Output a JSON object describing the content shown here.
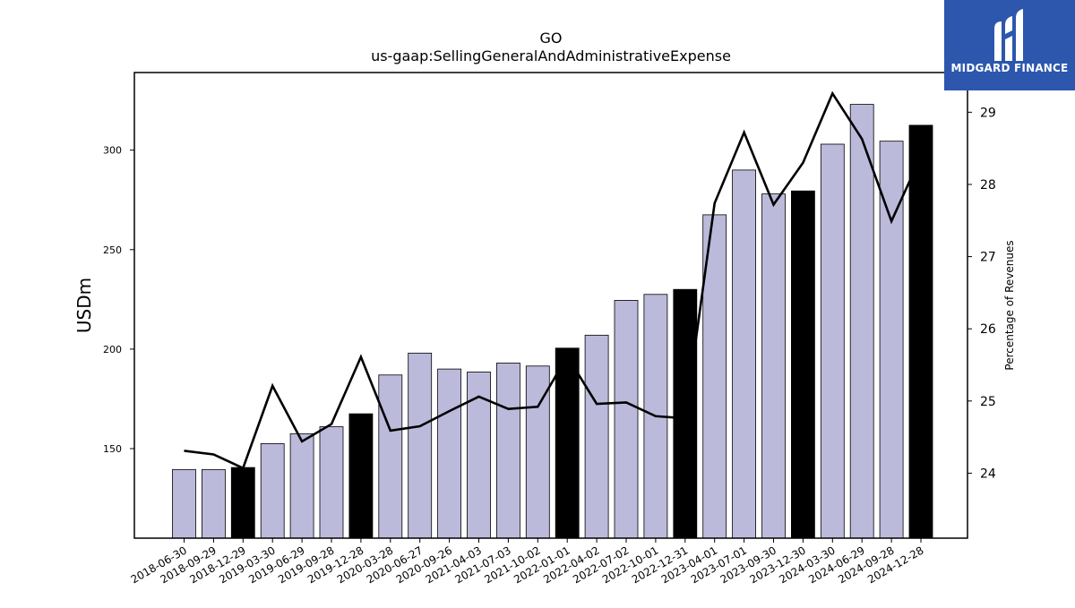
{
  "chart_data": {
    "type": "bar",
    "title": "GO",
    "subtitle": "us-gaap:SellingGeneralAndAdministrativeExpense",
    "ylabel": "USDm",
    "y2label": "Percentage of Revenues",
    "ylim": [
      105,
      339
    ],
    "y2lim": [
      23.1,
      29.55
    ],
    "yticks": [
      150,
      200,
      250,
      300
    ],
    "y2ticks": [
      24,
      25,
      26,
      27,
      28,
      29
    ],
    "categories": [
      "2018-06-30",
      "2018-09-29",
      "2018-12-29",
      "2019-03-30",
      "2019-06-29",
      "2019-09-28",
      "2019-12-28",
      "2020-03-28",
      "2020-06-27",
      "2020-09-26",
      "2021-04-03",
      "2021-07-03",
      "2021-10-02",
      "2022-01-01",
      "2022-04-02",
      "2022-07-02",
      "2022-10-01",
      "2022-12-31",
      "2023-04-01",
      "2023-07-01",
      "2023-09-30",
      "2023-12-30",
      "2024-03-30",
      "2024-06-29",
      "2024-09-28",
      "2024-12-28"
    ],
    "series": [
      {
        "type": "bar",
        "axis": "left",
        "values": [
          139.5,
          139.5,
          140.5,
          152.5,
          157.5,
          161,
          167.5,
          187,
          198,
          190,
          188.5,
          193,
          191.5,
          200.5,
          207,
          224.5,
          227.5,
          230,
          267.5,
          290,
          278,
          279.5,
          303,
          323,
          304.5,
          312.5
        ],
        "highlight": [
          false,
          false,
          true,
          false,
          false,
          false,
          true,
          false,
          false,
          false,
          false,
          false,
          false,
          true,
          false,
          false,
          false,
          true,
          false,
          false,
          false,
          true,
          false,
          false,
          false,
          true
        ]
      },
      {
        "type": "line",
        "axis": "right",
        "values": [
          24.31,
          24.26,
          24.07,
          25.21,
          24.44,
          24.68,
          25.61,
          24.59,
          24.65,
          24.86,
          25.06,
          24.89,
          24.92,
          25.62,
          24.96,
          24.98,
          24.79,
          24.76,
          27.74,
          28.72,
          27.72,
          28.3,
          29.26,
          28.63,
          27.49,
          28.39
        ]
      }
    ],
    "colors": {
      "bar": "#bcbadb",
      "bar_highlight": "#000000",
      "line": "#000000",
      "logo_bg": "#2c57ad"
    },
    "grid": false,
    "legend": "none"
  },
  "logo": {
    "text": "MIDGARD FINANCE",
    "icon": "midgard-logo-icon"
  }
}
